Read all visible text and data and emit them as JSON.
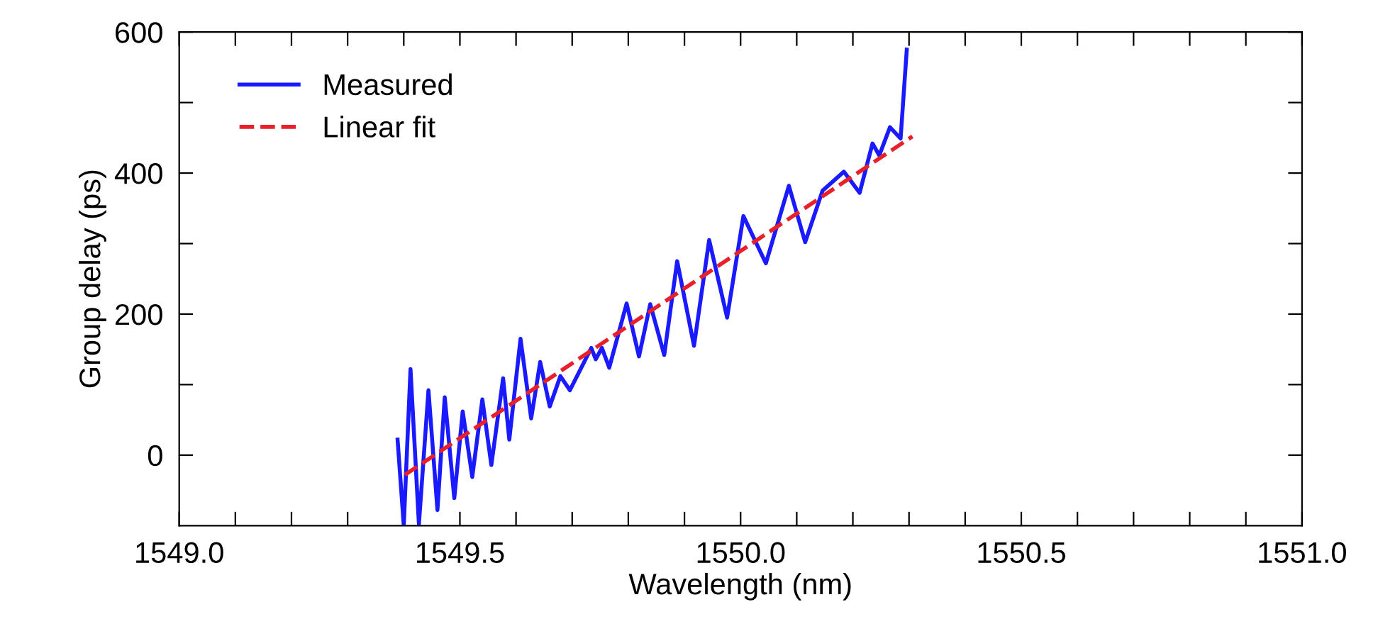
{
  "chart_data": {
    "type": "line",
    "xlabel": "Wavelength (nm)",
    "ylabel": "Group delay (ps)",
    "xlim": [
      1549.0,
      1551.0
    ],
    "ylim": [
      -100,
      600
    ],
    "xticks": [
      {
        "value": 1549.0,
        "label": "1549.0"
      },
      {
        "value": 1549.1,
        "label": null
      },
      {
        "value": 1549.2,
        "label": null
      },
      {
        "value": 1549.3,
        "label": null
      },
      {
        "value": 1549.4,
        "label": null
      },
      {
        "value": 1549.5,
        "label": "1549.5"
      },
      {
        "value": 1549.6,
        "label": null
      },
      {
        "value": 1549.7,
        "label": null
      },
      {
        "value": 1549.8,
        "label": null
      },
      {
        "value": 1549.9,
        "label": null
      },
      {
        "value": 1550.0,
        "label": "1550.0"
      },
      {
        "value": 1550.1,
        "label": null
      },
      {
        "value": 1550.2,
        "label": null
      },
      {
        "value": 1550.3,
        "label": null
      },
      {
        "value": 1550.4,
        "label": null
      },
      {
        "value": 1550.5,
        "label": "1550.5"
      },
      {
        "value": 1550.6,
        "label": null
      },
      {
        "value": 1550.7,
        "label": null
      },
      {
        "value": 1550.8,
        "label": null
      },
      {
        "value": 1550.9,
        "label": null
      },
      {
        "value": 1551.0,
        "label": "1551.0"
      }
    ],
    "yticks": [
      0,
      {
        "value": 100,
        "label": null
      },
      200,
      {
        "value": 300,
        "label": null
      },
      400,
      {
        "value": 500,
        "label": null
      },
      600
    ],
    "grid": false,
    "legend": "top left",
    "marker": "none",
    "series": [
      {
        "name": "Measured",
        "color": "#1a1aff",
        "line_style": "solid",
        "x": [
          1549.389,
          1549.4,
          1549.412,
          1549.427,
          1549.444,
          1549.46,
          1549.473,
          1549.49,
          1549.505,
          1549.522,
          1549.54,
          1549.556,
          1549.577,
          1549.588,
          1549.608,
          1549.627,
          1549.643,
          1549.66,
          1549.679,
          1549.696,
          1549.734,
          1549.742,
          1549.753,
          1549.766,
          1549.797,
          1549.819,
          1549.839,
          1549.864,
          1549.887,
          1549.917,
          1549.944,
          1549.976,
          1550.005,
          1550.045,
          1550.086,
          1550.115,
          1550.146,
          1550.184,
          1550.212,
          1550.235,
          1550.247,
          1550.266,
          1550.285,
          1550.296
        ],
        "values": [
          22,
          -100,
          122,
          -98,
          92,
          -78,
          82,
          -61,
          62,
          -31,
          79,
          -14,
          109,
          22,
          165,
          52,
          132,
          69,
          112,
          92,
          152,
          136,
          152,
          124,
          215,
          140,
          214,
          142,
          275,
          155,
          305,
          195,
          339,
          272,
          382,
          302,
          375,
          402,
          372,
          442,
          425,
          465,
          449,
          575
        ]
      },
      {
        "name": "Linear fit",
        "color": "#e8202a",
        "line_style": "dashed",
        "x": [
          1549.402,
          1550.306
        ],
        "values": [
          -28,
          452
        ]
      }
    ]
  }
}
